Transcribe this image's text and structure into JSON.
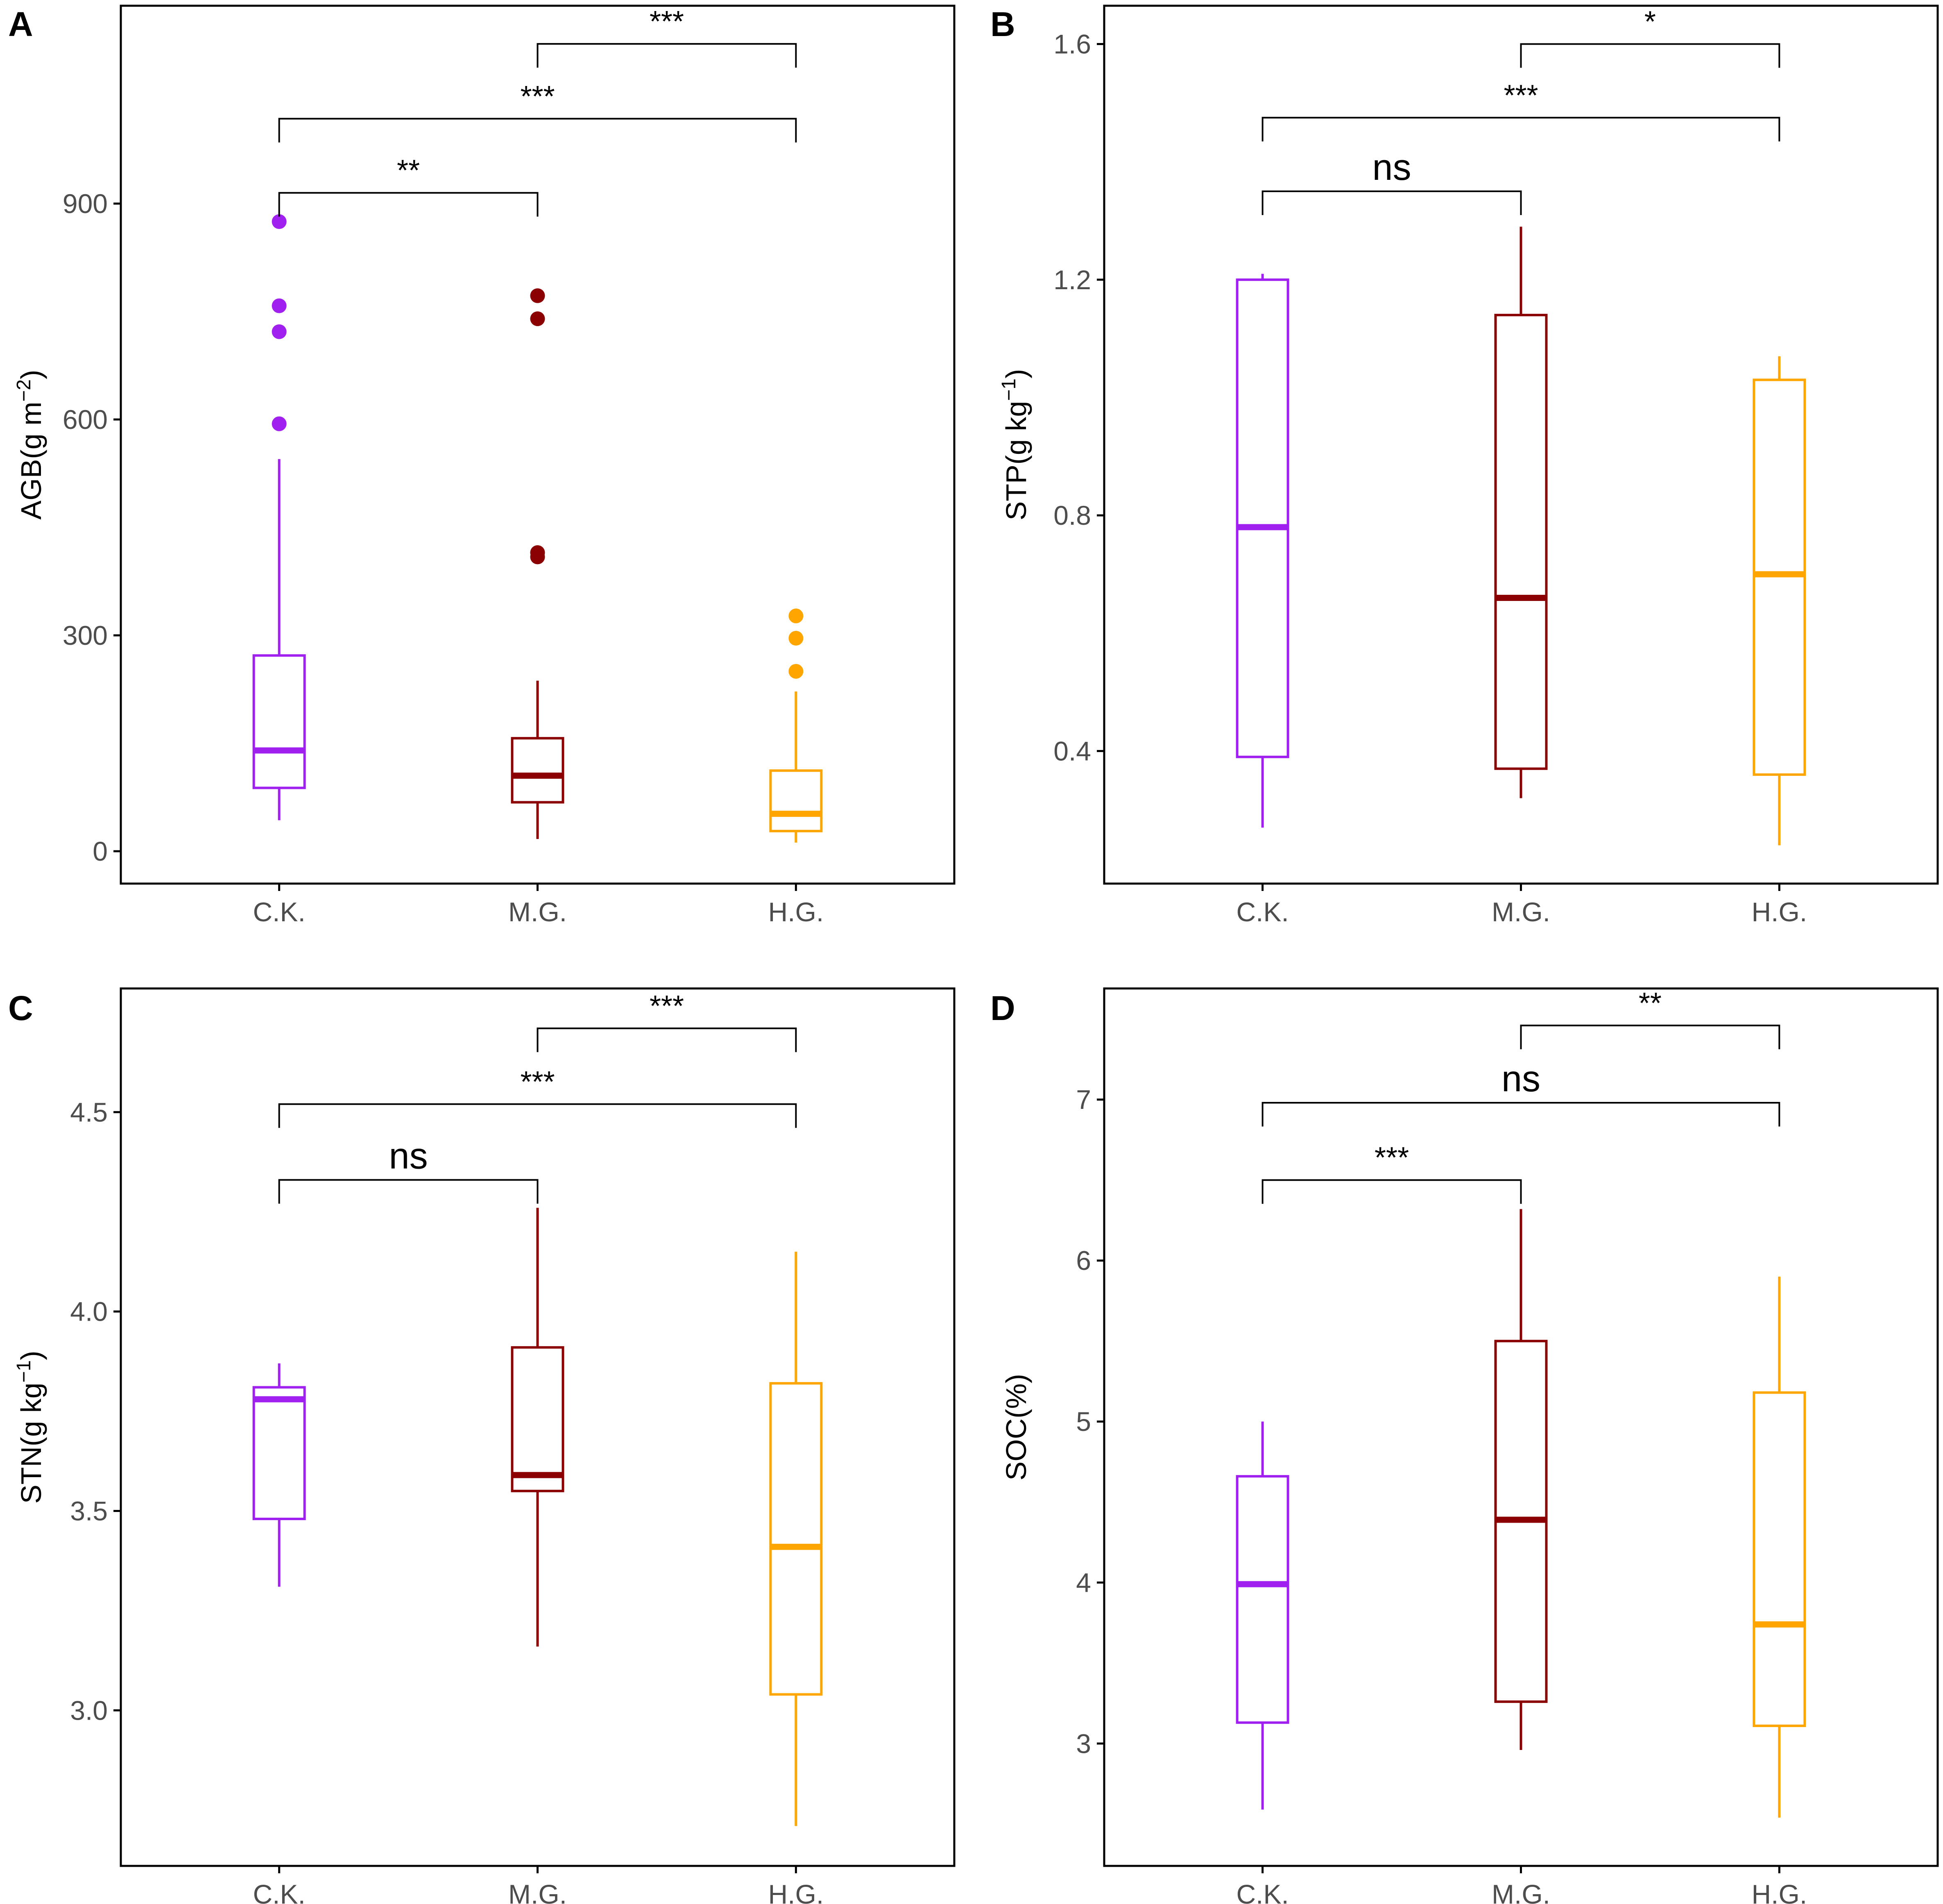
{
  "figure": {
    "panels": [
      "A",
      "B",
      "C",
      "D"
    ]
  },
  "colors": {
    "C.K.": "#a020f0",
    "M.G.": "#8b0000",
    "H.G.": "#ffa500",
    "axis": "#000000",
    "tick_text": "#4d4d4d"
  },
  "chart_data": [
    {
      "panel": "A",
      "type": "box",
      "ylabel": "AGB(g m⁻²)",
      "ylabel_base": "AGB(g m",
      "ylabel_sup": "−2",
      "ylabel_end": ")",
      "categories": [
        "C.K.",
        "M.G.",
        "H.G."
      ],
      "ylim": [
        -45,
        1175
      ],
      "yticks": [
        0,
        300,
        600,
        900
      ],
      "boxes": [
        {
          "group": "C.K.",
          "low": 43,
          "q1": 88,
          "median": 140,
          "q3": 272,
          "high": 545,
          "outliers": [
            875,
            758,
            722,
            594
          ]
        },
        {
          "group": "M.G.",
          "low": 17,
          "q1": 68,
          "median": 105,
          "q3": 157,
          "high": 237,
          "outliers": [
            772,
            740,
            415,
            409
          ]
        },
        {
          "group": "H.G.",
          "low": 12,
          "q1": 28,
          "median": 52,
          "q3": 112,
          "high": 222,
          "outliers": [
            327,
            296,
            250
          ]
        }
      ],
      "comparisons": [
        {
          "from": "C.K.",
          "to": "M.G.",
          "y": 915,
          "label": "**"
        },
        {
          "from": "C.K.",
          "to": "H.G.",
          "y": 1018,
          "label": "***"
        },
        {
          "from": "M.G.",
          "to": "H.G.",
          "y": 1122,
          "label": "***"
        }
      ]
    },
    {
      "panel": "B",
      "type": "box",
      "ylabel": "STP(g kg⁻¹)",
      "ylabel_base": "STP(g kg",
      "ylabel_sup": "−1",
      "ylabel_end": ")",
      "categories": [
        "C.K.",
        "M.G.",
        "H.G."
      ],
      "ylim": [
        0.175,
        1.665
      ],
      "yticks": [
        0.4,
        0.8,
        1.2,
        1.6
      ],
      "boxes": [
        {
          "group": "C.K.",
          "low": 0.27,
          "q1": 0.39,
          "median": 0.78,
          "q3": 1.2,
          "high": 1.21,
          "outliers": []
        },
        {
          "group": "M.G.",
          "low": 0.32,
          "q1": 0.37,
          "median": 0.66,
          "q3": 1.14,
          "high": 1.29,
          "outliers": []
        },
        {
          "group": "H.G.",
          "low": 0.24,
          "q1": 0.36,
          "median": 0.7,
          "q3": 1.03,
          "high": 1.07,
          "outliers": []
        }
      ],
      "comparisons": [
        {
          "from": "C.K.",
          "to": "M.G.",
          "y": 1.35,
          "label": "ns"
        },
        {
          "from": "C.K.",
          "to": "H.G.",
          "y": 1.475,
          "label": "***"
        },
        {
          "from": "M.G.",
          "to": "H.G.",
          "y": 1.6,
          "label": "*"
        }
      ]
    },
    {
      "panel": "C",
      "type": "box",
      "ylabel": "STN(g kg⁻¹)",
      "ylabel_base": "STN(g kg",
      "ylabel_sup": "−1",
      "ylabel_end": ")",
      "categories": [
        "C.K.",
        "M.G.",
        "H.G."
      ],
      "ylim": [
        2.61,
        4.81
      ],
      "yticks": [
        3.0,
        3.5,
        4.0,
        4.5
      ],
      "yticklabels": [
        "3.0",
        "3.5",
        "4.0",
        "4.5"
      ],
      "boxes": [
        {
          "group": "C.K.",
          "low": 3.31,
          "q1": 3.48,
          "median": 3.78,
          "q3": 3.81,
          "high": 3.87,
          "outliers": []
        },
        {
          "group": "M.G.",
          "low": 3.16,
          "q1": 3.55,
          "median": 3.59,
          "q3": 3.91,
          "high": 4.26,
          "outliers": []
        },
        {
          "group": "H.G.",
          "low": 2.71,
          "q1": 3.04,
          "median": 3.41,
          "q3": 3.82,
          "high": 4.15,
          "outliers": []
        }
      ],
      "comparisons": [
        {
          "from": "C.K.",
          "to": "M.G.",
          "y": 4.33,
          "label": "ns"
        },
        {
          "from": "C.K.",
          "to": "H.G.",
          "y": 4.52,
          "label": "***"
        },
        {
          "from": "M.G.",
          "to": "H.G.",
          "y": 4.71,
          "label": "***"
        }
      ]
    },
    {
      "panel": "D",
      "type": "box",
      "ylabel": "SOC(%)",
      "ylabel_base": "SOC(%)",
      "ylabel_sup": "",
      "ylabel_end": "",
      "categories": [
        "C.K.",
        "M.G.",
        "H.G."
      ],
      "ylim": [
        2.24,
        7.69
      ],
      "yticks": [
        3,
        4,
        5,
        6,
        7
      ],
      "boxes": [
        {
          "group": "C.K.",
          "low": 2.59,
          "q1": 3.13,
          "median": 3.99,
          "q3": 4.66,
          "high": 5.0,
          "outliers": []
        },
        {
          "group": "M.G.",
          "low": 2.96,
          "q1": 3.26,
          "median": 4.39,
          "q3": 5.5,
          "high": 6.32,
          "outliers": []
        },
        {
          "group": "H.G.",
          "low": 2.54,
          "q1": 3.11,
          "median": 3.74,
          "q3": 5.18,
          "high": 5.9,
          "outliers": []
        }
      ],
      "comparisons": [
        {
          "from": "C.K.",
          "to": "M.G.",
          "y": 6.5,
          "label": "***"
        },
        {
          "from": "C.K.",
          "to": "H.G.",
          "y": 6.98,
          "label": "ns"
        },
        {
          "from": "M.G.",
          "to": "H.G.",
          "y": 7.46,
          "label": "**"
        }
      ]
    }
  ]
}
